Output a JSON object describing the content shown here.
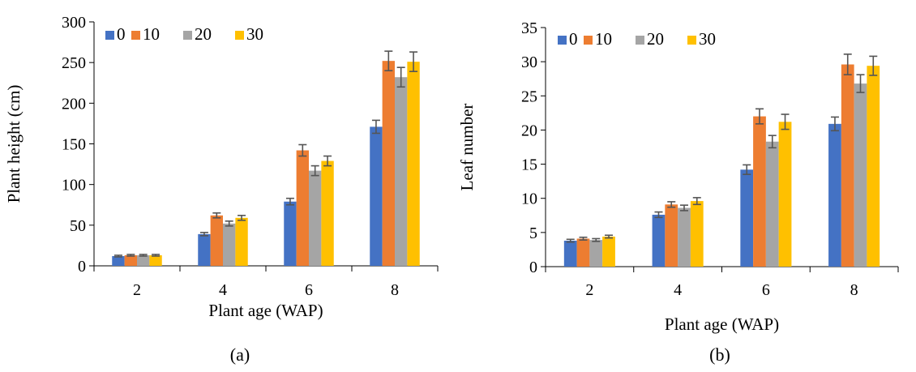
{
  "colors": {
    "series": [
      "#4472C4",
      "#ED7D31",
      "#A5A5A5",
      "#FFC000"
    ],
    "axis": "#000000",
    "error_bar": "#555555"
  },
  "chart_data": [
    {
      "type": "bar",
      "panel_label": "(a)",
      "xlabel": "Plant age (WAP)",
      "ylabel": "Plant height (cm)",
      "categories": [
        "2",
        "4",
        "6",
        "8"
      ],
      "ylim": [
        0,
        300
      ],
      "yticks": [
        0,
        50,
        100,
        150,
        200,
        250,
        300
      ],
      "grid": false,
      "legend_position": "top-left",
      "series": [
        {
          "name": "0",
          "values": [
            12,
            39,
            79,
            171
          ],
          "errors": [
            1,
            2,
            4,
            8
          ]
        },
        {
          "name": "10",
          "values": [
            13,
            62,
            142,
            252
          ],
          "errors": [
            1,
            3,
            7,
            12
          ]
        },
        {
          "name": "20",
          "values": [
            13,
            52,
            117,
            232
          ],
          "errors": [
            1,
            3,
            6,
            12
          ]
        },
        {
          "name": "30",
          "values": [
            13,
            59,
            129,
            251
          ],
          "errors": [
            1,
            3,
            6,
            12
          ]
        }
      ]
    },
    {
      "type": "bar",
      "panel_label": "(b)",
      "xlabel": "Plant age (WAP)",
      "ylabel": "Leaf number",
      "categories": [
        "2",
        "4",
        "6",
        "8"
      ],
      "ylim": [
        0,
        35
      ],
      "yticks": [
        0,
        5,
        10,
        15,
        20,
        25,
        30,
        35
      ],
      "grid": false,
      "legend_position": "top-left",
      "series": [
        {
          "name": "0",
          "values": [
            3.8,
            7.6,
            14.2,
            20.9
          ],
          "errors": [
            0.2,
            0.4,
            0.7,
            1.0
          ]
        },
        {
          "name": "10",
          "values": [
            4.1,
            9.1,
            22.0,
            29.6
          ],
          "errors": [
            0.2,
            0.4,
            1.1,
            1.5
          ]
        },
        {
          "name": "20",
          "values": [
            3.9,
            8.6,
            18.3,
            26.8
          ],
          "errors": [
            0.2,
            0.4,
            0.9,
            1.3
          ]
        },
        {
          "name": "30",
          "values": [
            4.4,
            9.6,
            21.2,
            29.4
          ],
          "errors": [
            0.2,
            0.5,
            1.1,
            1.4
          ]
        }
      ]
    }
  ]
}
